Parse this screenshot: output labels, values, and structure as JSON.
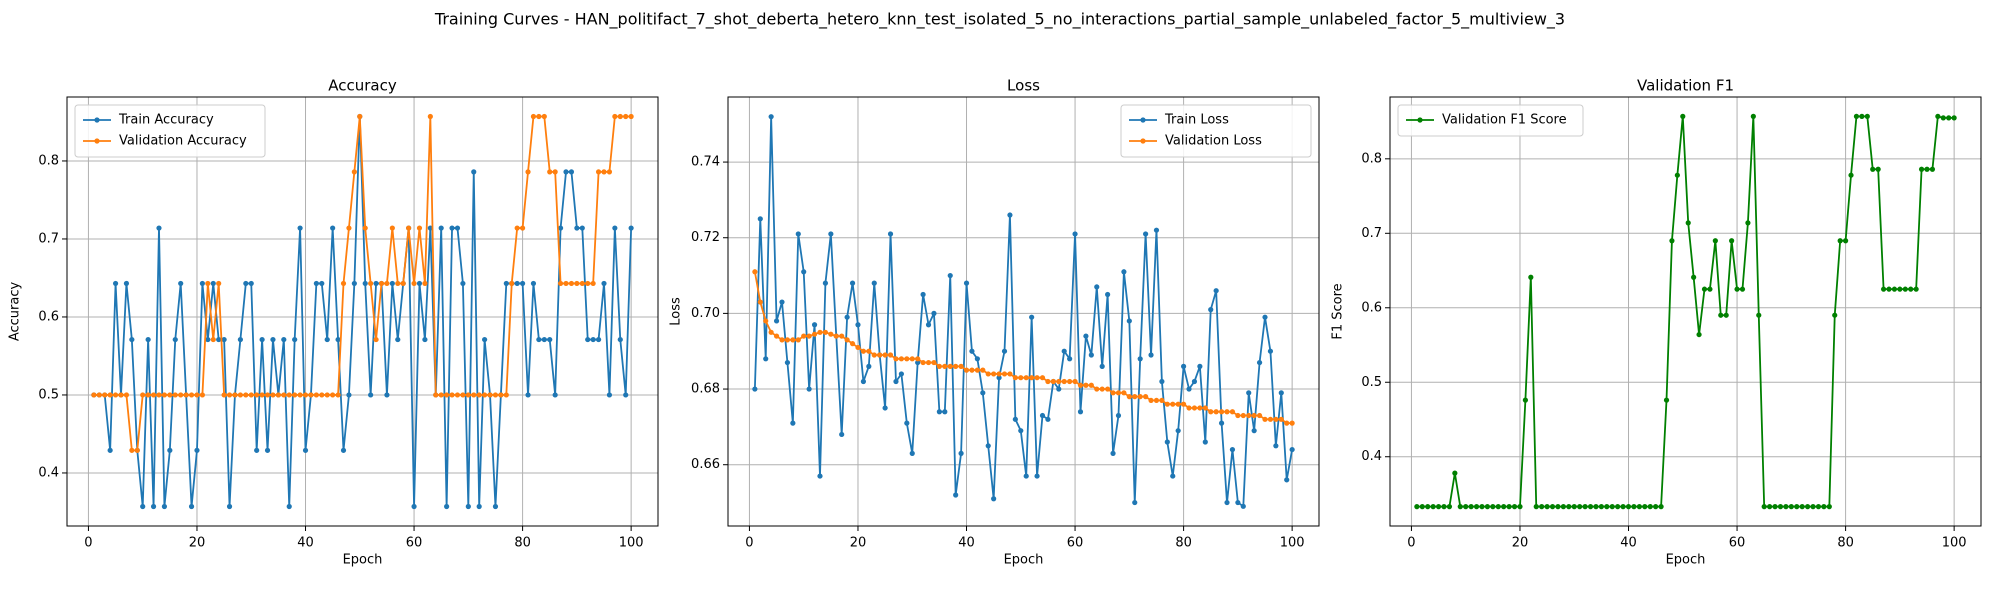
{
  "title": "Training Curves - HAN_politifact_7_shot_deberta_hetero_knn_test_isolated_5_no_interactions_partial_sample_unlabeled_factor_5_multiview_3",
  "chart_data": [
    {
      "type": "line",
      "title": "Accuracy",
      "xlabel": "Epoch",
      "ylabel": "Accuracy",
      "legend": "upper left",
      "grid": true,
      "x": [
        1,
        2,
        3,
        4,
        5,
        6,
        7,
        8,
        9,
        10,
        11,
        12,
        13,
        14,
        15,
        16,
        17,
        18,
        19,
        20,
        21,
        22,
        23,
        24,
        25,
        26,
        27,
        28,
        29,
        30,
        31,
        32,
        33,
        34,
        35,
        36,
        37,
        38,
        39,
        40,
        41,
        42,
        43,
        44,
        45,
        46,
        47,
        48,
        49,
        50,
        51,
        52,
        53,
        54,
        55,
        56,
        57,
        58,
        59,
        60,
        61,
        62,
        63,
        64,
        65,
        66,
        67,
        68,
        69,
        70,
        71,
        72,
        73,
        74,
        75,
        76,
        77,
        78,
        79,
        80,
        81,
        82,
        83,
        84,
        85,
        86,
        87,
        88,
        89,
        90,
        91,
        92,
        93,
        94,
        95,
        96,
        97,
        98,
        99,
        100
      ],
      "series": [
        {
          "name": "Train Accuracy",
          "color": "#1f77b4",
          "values": [
            0.5,
            0.5,
            0.5,
            0.429,
            0.643,
            0.5,
            0.643,
            0.571,
            0.429,
            0.357,
            0.571,
            0.357,
            0.714,
            0.357,
            0.429,
            0.571,
            0.643,
            0.5,
            0.357,
            0.429,
            0.643,
            0.571,
            0.643,
            0.571,
            0.571,
            0.357,
            0.5,
            0.571,
            0.643,
            0.643,
            0.429,
            0.571,
            0.429,
            0.571,
            0.5,
            0.571,
            0.357,
            0.571,
            0.714,
            0.429,
            0.5,
            0.643,
            0.643,
            0.571,
            0.714,
            0.571,
            0.429,
            0.5,
            0.643,
            0.857,
            0.643,
            0.5,
            0.643,
            0.643,
            0.5,
            0.643,
            0.571,
            0.643,
            0.714,
            0.357,
            0.643,
            0.571,
            0.714,
            0.5,
            0.714,
            0.357,
            0.714,
            0.714,
            0.643,
            0.357,
            0.786,
            0.357,
            0.571,
            0.5,
            0.357,
            0.5,
            0.643,
            0.643,
            0.643,
            0.643,
            0.5,
            0.643,
            0.571,
            0.571,
            0.571,
            0.5,
            0.714,
            0.786,
            0.786,
            0.714,
            0.714,
            0.571,
            0.571,
            0.571,
            0.643,
            0.5,
            0.714,
            0.571,
            0.5,
            0.714
          ]
        },
        {
          "name": "Validation Accuracy",
          "color": "#ff7f0e",
          "values": [
            0.5,
            0.5,
            0.5,
            0.5,
            0.5,
            0.5,
            0.5,
            0.429,
            0.429,
            0.5,
            0.5,
            0.5,
            0.5,
            0.5,
            0.5,
            0.5,
            0.5,
            0.5,
            0.5,
            0.5,
            0.5,
            0.643,
            0.571,
            0.643,
            0.5,
            0.5,
            0.5,
            0.5,
            0.5,
            0.5,
            0.5,
            0.5,
            0.5,
            0.5,
            0.5,
            0.5,
            0.5,
            0.5,
            0.5,
            0.5,
            0.5,
            0.5,
            0.5,
            0.5,
            0.5,
            0.5,
            0.643,
            0.714,
            0.786,
            0.857,
            0.714,
            0.643,
            0.571,
            0.643,
            0.643,
            0.714,
            0.643,
            0.643,
            0.714,
            0.643,
            0.714,
            0.643,
            0.857,
            0.5,
            0.5,
            0.5,
            0.5,
            0.5,
            0.5,
            0.5,
            0.5,
            0.5,
            0.5,
            0.5,
            0.5,
            0.5,
            0.5,
            0.643,
            0.714,
            0.714,
            0.786,
            0.857,
            0.857,
            0.857,
            0.786,
            0.786,
            0.643,
            0.643,
            0.643,
            0.643,
            0.643,
            0.643,
            0.643,
            0.786,
            0.786,
            0.786,
            0.857,
            0.857,
            0.857,
            0.857
          ]
        }
      ],
      "xlim": [
        -3.95,
        104.95
      ],
      "xticks": [
        0,
        20,
        40,
        60,
        80,
        100
      ],
      "ylim": [
        0.332,
        0.882
      ],
      "yticks": [
        0.4,
        0.5,
        0.6,
        0.7,
        0.8
      ]
    },
    {
      "type": "line",
      "title": "Loss",
      "xlabel": "Epoch",
      "ylabel": "Loss",
      "legend": "upper right",
      "grid": true,
      "x": [
        1,
        2,
        3,
        4,
        5,
        6,
        7,
        8,
        9,
        10,
        11,
        12,
        13,
        14,
        15,
        16,
        17,
        18,
        19,
        20,
        21,
        22,
        23,
        24,
        25,
        26,
        27,
        28,
        29,
        30,
        31,
        32,
        33,
        34,
        35,
        36,
        37,
        38,
        39,
        40,
        41,
        42,
        43,
        44,
        45,
        46,
        47,
        48,
        49,
        50,
        51,
        52,
        53,
        54,
        55,
        56,
        57,
        58,
        59,
        60,
        61,
        62,
        63,
        64,
        65,
        66,
        67,
        68,
        69,
        70,
        71,
        72,
        73,
        74,
        75,
        76,
        77,
        78,
        79,
        80,
        81,
        82,
        83,
        84,
        85,
        86,
        87,
        88,
        89,
        90,
        91,
        92,
        93,
        94,
        95,
        96,
        97,
        98,
        99,
        100
      ],
      "series": [
        {
          "name": "Train Loss",
          "color": "#1f77b4",
          "values": [
            0.68,
            0.725,
            0.688,
            0.752,
            0.698,
            0.703,
            0.687,
            0.671,
            0.721,
            0.711,
            0.68,
            0.697,
            0.657,
            0.708,
            0.721,
            0.694,
            0.668,
            0.699,
            0.708,
            0.697,
            0.682,
            0.686,
            0.708,
            0.689,
            0.675,
            0.721,
            0.682,
            0.684,
            0.671,
            0.663,
            0.687,
            0.705,
            0.697,
            0.7,
            0.674,
            0.674,
            0.71,
            0.652,
            0.663,
            0.708,
            0.69,
            0.688,
            0.679,
            0.665,
            0.651,
            0.683,
            0.69,
            0.726,
            0.672,
            0.669,
            0.657,
            0.699,
            0.657,
            0.673,
            0.672,
            0.682,
            0.68,
            0.69,
            0.688,
            0.721,
            0.674,
            0.694,
            0.689,
            0.707,
            0.686,
            0.705,
            0.663,
            0.673,
            0.711,
            0.698,
            0.65,
            0.688,
            0.721,
            0.689,
            0.722,
            0.682,
            0.666,
            0.657,
            0.669,
            0.686,
            0.68,
            0.682,
            0.686,
            0.666,
            0.701,
            0.706,
            0.671,
            0.65,
            0.664,
            0.65,
            0.649,
            0.679,
            0.669,
            0.687,
            0.699,
            0.69,
            0.665,
            0.679,
            0.656,
            0.664
          ]
        },
        {
          "name": "Validation Loss",
          "color": "#ff7f0e",
          "values": [
            0.711,
            0.703,
            0.698,
            0.695,
            0.694,
            0.693,
            0.693,
            0.693,
            0.693,
            0.694,
            0.694,
            0.6945,
            0.695,
            0.695,
            0.6945,
            0.694,
            0.694,
            0.693,
            0.692,
            0.691,
            0.69,
            0.69,
            0.689,
            0.689,
            0.689,
            0.689,
            0.688,
            0.688,
            0.688,
            0.688,
            0.688,
            0.687,
            0.687,
            0.687,
            0.686,
            0.686,
            0.686,
            0.686,
            0.686,
            0.685,
            0.685,
            0.685,
            0.685,
            0.684,
            0.684,
            0.684,
            0.684,
            0.684,
            0.683,
            0.683,
            0.683,
            0.683,
            0.683,
            0.683,
            0.682,
            0.682,
            0.682,
            0.682,
            0.682,
            0.682,
            0.681,
            0.681,
            0.681,
            0.68,
            0.68,
            0.68,
            0.679,
            0.679,
            0.679,
            0.678,
            0.678,
            0.678,
            0.678,
            0.677,
            0.677,
            0.677,
            0.676,
            0.676,
            0.676,
            0.676,
            0.675,
            0.675,
            0.675,
            0.675,
            0.674,
            0.674,
            0.674,
            0.674,
            0.674,
            0.673,
            0.673,
            0.673,
            0.673,
            0.673,
            0.672,
            0.672,
            0.672,
            0.672,
            0.671,
            0.671
          ]
        }
      ],
      "xlim": [
        -3.95,
        104.95
      ],
      "xticks": [
        0,
        20,
        40,
        60,
        80,
        100
      ],
      "ylim": [
        0.6438,
        0.7572
      ],
      "yticks": [
        0.66,
        0.68,
        {
          "value": 0.7,
          "label": "0.70"
        },
        0.72,
        0.74
      ]
    },
    {
      "type": "line",
      "title": "Validation F1",
      "xlabel": "Epoch",
      "ylabel": "F1 Score",
      "legend": "upper left",
      "grid": true,
      "x": [
        1,
        2,
        3,
        4,
        5,
        6,
        7,
        8,
        9,
        10,
        11,
        12,
        13,
        14,
        15,
        16,
        17,
        18,
        19,
        20,
        21,
        22,
        23,
        24,
        25,
        26,
        27,
        28,
        29,
        30,
        31,
        32,
        33,
        34,
        35,
        36,
        37,
        38,
        39,
        40,
        41,
        42,
        43,
        44,
        45,
        46,
        47,
        48,
        49,
        50,
        51,
        52,
        53,
        54,
        55,
        56,
        57,
        58,
        59,
        60,
        61,
        62,
        63,
        64,
        65,
        66,
        67,
        68,
        69,
        70,
        71,
        72,
        73,
        74,
        75,
        76,
        77,
        78,
        79,
        80,
        81,
        82,
        83,
        84,
        85,
        86,
        87,
        88,
        89,
        90,
        91,
        92,
        93,
        94,
        95,
        96,
        97,
        98,
        99,
        100
      ],
      "series": [
        {
          "name": "Validation F1 Score",
          "color": "#008000",
          "values": [
            0.333,
            0.333,
            0.333,
            0.333,
            0.333,
            0.333,
            0.333,
            0.378,
            0.333,
            0.333,
            0.333,
            0.333,
            0.333,
            0.333,
            0.333,
            0.333,
            0.333,
            0.333,
            0.333,
            0.333,
            0.476,
            0.641,
            0.333,
            0.333,
            0.333,
            0.333,
            0.333,
            0.333,
            0.333,
            0.333,
            0.333,
            0.333,
            0.333,
            0.333,
            0.333,
            0.333,
            0.333,
            0.333,
            0.333,
            0.333,
            0.333,
            0.333,
            0.333,
            0.333,
            0.333,
            0.333,
            0.476,
            0.69,
            0.778,
            0.857,
            0.714,
            0.641,
            0.564,
            0.625,
            0.625,
            0.69,
            0.59,
            0.59,
            0.69,
            0.625,
            0.625,
            0.714,
            0.857,
            0.59,
            0.333,
            0.333,
            0.333,
            0.333,
            0.333,
            0.333,
            0.333,
            0.333,
            0.333,
            0.333,
            0.333,
            0.333,
            0.333,
            0.59,
            0.69,
            0.69,
            0.778,
            0.857,
            0.857,
            0.857,
            0.786,
            0.786,
            0.625,
            0.625,
            0.625,
            0.625,
            0.625,
            0.625,
            0.625,
            0.786,
            0.786,
            0.786,
            0.857,
            0.855,
            0.855,
            0.855
          ]
        }
      ],
      "xlim": [
        -3.95,
        104.95
      ],
      "xticks": [
        0,
        20,
        40,
        60,
        80,
        100
      ],
      "ylim": [
        0.307,
        0.883
      ],
      "yticks": [
        0.4,
        0.5,
        0.6,
        0.7,
        0.8
      ]
    }
  ]
}
